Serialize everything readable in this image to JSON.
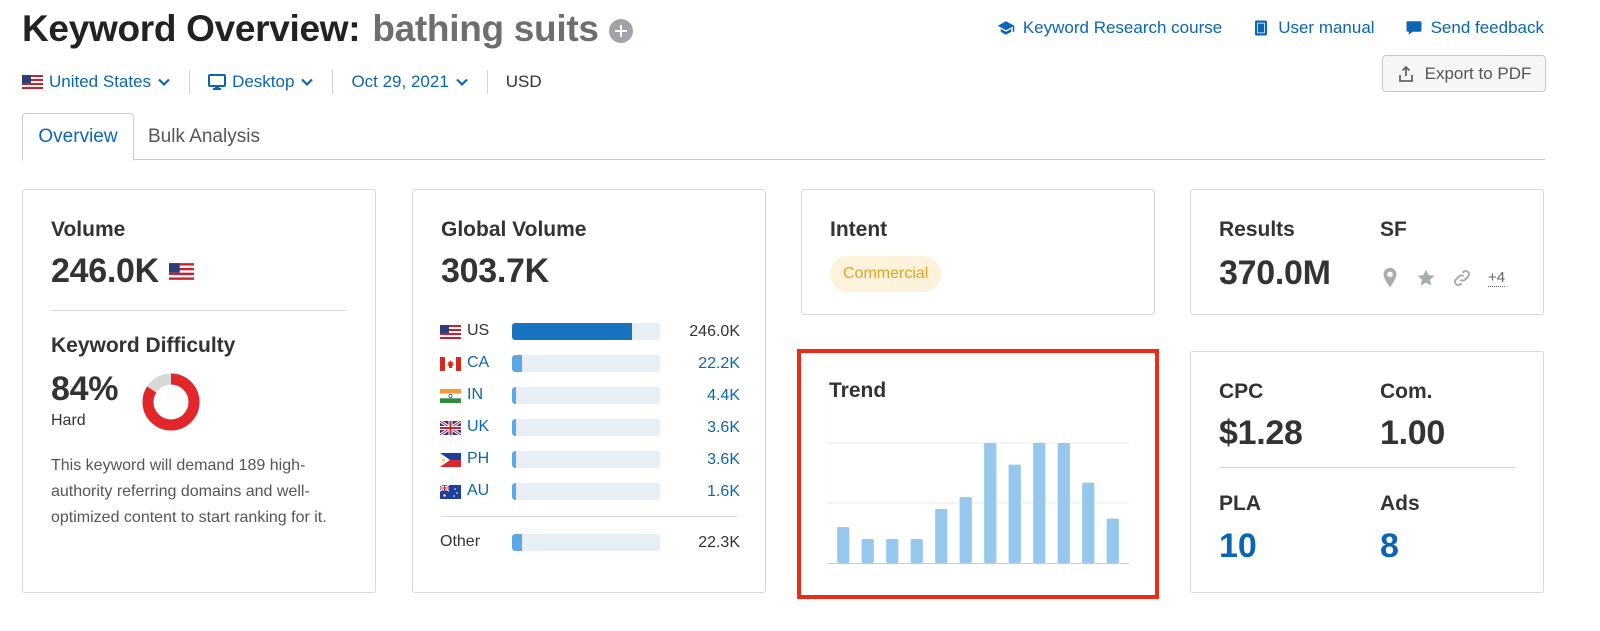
{
  "header": {
    "title": "Keyword Overview:",
    "keyword": "bathing suits",
    "links": [
      {
        "label": "Keyword Research course",
        "icon": "graduation-cap-icon"
      },
      {
        "label": "User manual",
        "icon": "book-icon"
      },
      {
        "label": "Send feedback",
        "icon": "chat-bubble-icon"
      }
    ],
    "export_label": "Export to PDF"
  },
  "filters": {
    "country": "United States",
    "device": "Desktop",
    "date": "Oct 29, 2021",
    "currency": "USD"
  },
  "tabs": [
    {
      "label": "Overview",
      "active": true
    },
    {
      "label": "Bulk Analysis",
      "active": false
    }
  ],
  "volume": {
    "label": "Volume",
    "value": "246.0K",
    "kd_label": "Keyword Difficulty",
    "kd_value": "84%",
    "kd_level": "Hard",
    "kd_percent": 84,
    "kd_color": "#e2262a",
    "kd_description": "This keyword will demand 189 high-authority referring domains and well-optimized content to start ranking for it."
  },
  "global_volume": {
    "label": "Global Volume",
    "value": "303.7K",
    "countries": [
      {
        "code": "US",
        "value": "246.0K",
        "share": 0.81
      },
      {
        "code": "CA",
        "value": "22.2K",
        "share": 0.07
      },
      {
        "code": "IN",
        "value": "4.4K",
        "share": 0.03
      },
      {
        "code": "UK",
        "value": "3.6K",
        "share": 0.03
      },
      {
        "code": "PH",
        "value": "3.6K",
        "share": 0.03
      },
      {
        "code": "AU",
        "value": "1.6K",
        "share": 0.03
      }
    ],
    "other_label": "Other",
    "other_value": "22.3K",
    "other_share": 0.07
  },
  "intent": {
    "label": "Intent",
    "badge": "Commercial"
  },
  "trend": {
    "label": "Trend",
    "bar_color": "#96c8ee"
  },
  "chart_data": {
    "type": "bar",
    "values": [
      0.3,
      0.2,
      0.2,
      0.2,
      0.45,
      0.55,
      1.0,
      0.82,
      1.0,
      1.0,
      0.67,
      0.37
    ],
    "ylim": [
      0,
      1
    ],
    "grid": true
  },
  "results": {
    "label": "Results",
    "value": "370.0M",
    "sf_label": "SF",
    "sf_more": "+4",
    "sf_icons": [
      "location-pin-icon",
      "star-icon",
      "link-icon"
    ]
  },
  "metrics": {
    "cpc_label": "CPC",
    "cpc_value": "$1.28",
    "com_label": "Com.",
    "com_value": "1.00",
    "pla_label": "PLA",
    "pla_value": "10",
    "ads_label": "Ads",
    "ads_value": "8"
  },
  "colors": {
    "link": "#0a66b2",
    "bar_primary": "#1a73c0",
    "bar_secondary": "#5aa8e6",
    "highlight_frame": "#ea2c14"
  }
}
